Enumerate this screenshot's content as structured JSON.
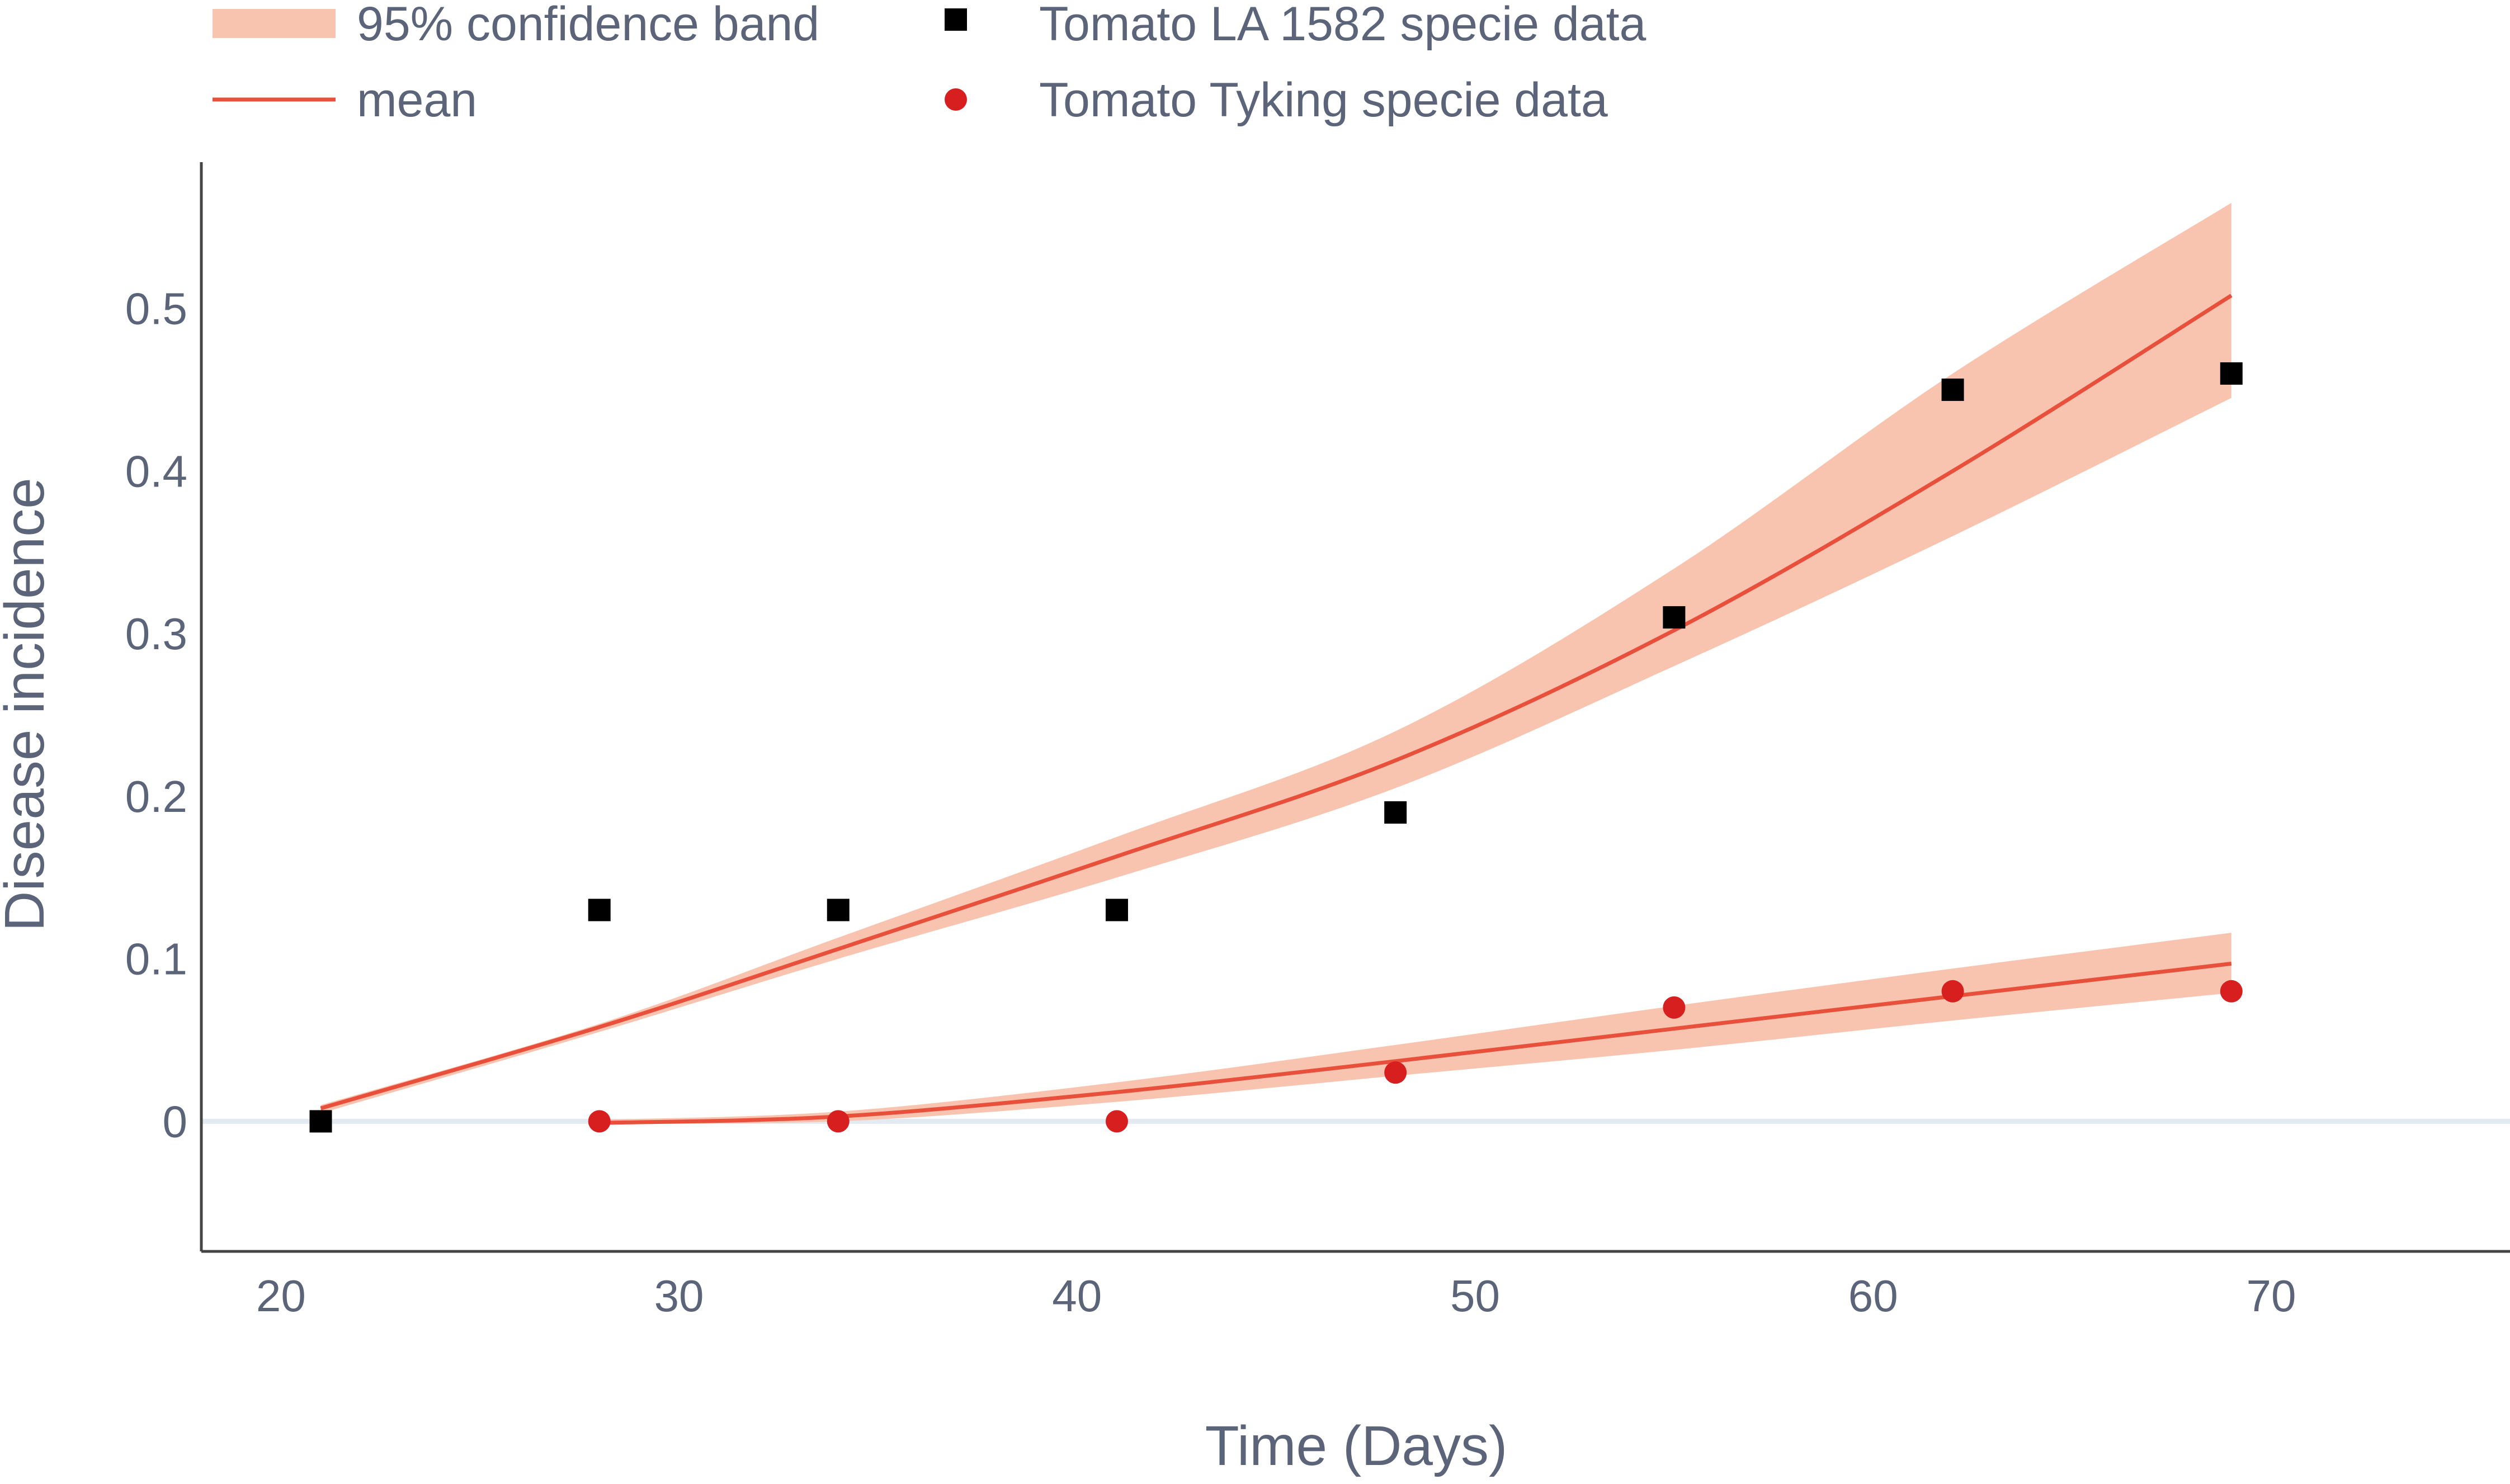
{
  "chart_data": {
    "type": "line",
    "xlabel": "Time (Days)",
    "ylabel": "Disease incidence",
    "xlim": [
      18,
      76
    ],
    "ylim": [
      -0.08,
      0.59
    ],
    "x_ticks": [
      20,
      30,
      40,
      50,
      60,
      70
    ],
    "x_tick_labels": [
      "20",
      "30",
      "40",
      "50",
      "60",
      "70"
    ],
    "y_ticks": [
      0,
      0.1,
      0.2,
      0.3,
      0.4,
      0.5
    ],
    "y_tick_labels": [
      "0",
      "0.1",
      "0.2",
      "0.3",
      "0.4",
      "0.5"
    ],
    "grid": false,
    "zero_line": true,
    "legend_position": "top",
    "legend": {
      "band_label": "95% confidence band",
      "mean_label": "mean",
      "la1582_label": "Tomato LA 1582 specie data",
      "tyking_label": "Tomato Tyking specie data"
    },
    "colors": {
      "band": "#f8c4b0",
      "mean": "#e8503c",
      "la1582": "#000000",
      "tyking": "#d71f1f",
      "axis": "#444444",
      "zero_line": "#e4eaf1",
      "text": "#5b6478"
    },
    "bands": [
      {
        "name": "95% confidence band",
        "x": [
          21,
          28,
          34,
          41,
          48,
          55,
          62,
          69
        ],
        "lower": [
          0.005,
          0.055,
          0.1,
          0.15,
          0.205,
          0.28,
          0.36,
          0.445
        ],
        "upper": [
          0.01,
          0.06,
          0.113,
          0.175,
          0.24,
          0.34,
          0.46,
          0.565
        ]
      },
      {
        "name": "95% confidence band",
        "x": [
          28,
          34,
          41,
          48,
          55,
          62,
          69
        ],
        "lower": [
          -0.001,
          0.0,
          0.012,
          0.028,
          0.044,
          0.062,
          0.079
        ],
        "upper": [
          0.001,
          0.006,
          0.024,
          0.047,
          0.071,
          0.094,
          0.116
        ]
      }
    ],
    "series": [
      {
        "name": "mean",
        "kind": "line",
        "x": [
          21,
          28,
          34,
          41,
          48,
          55,
          62,
          69
        ],
        "values": [
          0.008,
          0.058,
          0.106,
          0.163,
          0.222,
          0.302,
          0.4,
          0.508
        ]
      },
      {
        "name": "mean",
        "kind": "line",
        "x": [
          28,
          34,
          41,
          48,
          55,
          62,
          69
        ],
        "values": [
          -0.001,
          0.003,
          0.018,
          0.037,
          0.057,
          0.077,
          0.097
        ]
      },
      {
        "name": "Tomato LA 1582 specie data",
        "kind": "scatter",
        "marker": "square",
        "x": [
          21,
          28,
          34,
          41,
          48,
          55,
          62,
          69
        ],
        "values": [
          0.0,
          0.13,
          0.13,
          0.13,
          0.19,
          0.31,
          0.45,
          0.46
        ]
      },
      {
        "name": "Tomato Tyking specie data",
        "kind": "scatter",
        "marker": "circle",
        "x": [
          28,
          34,
          41,
          48,
          55,
          62,
          69
        ],
        "values": [
          0.0,
          0.0,
          0.0,
          0.03,
          0.07,
          0.08,
          0.08
        ]
      }
    ]
  }
}
